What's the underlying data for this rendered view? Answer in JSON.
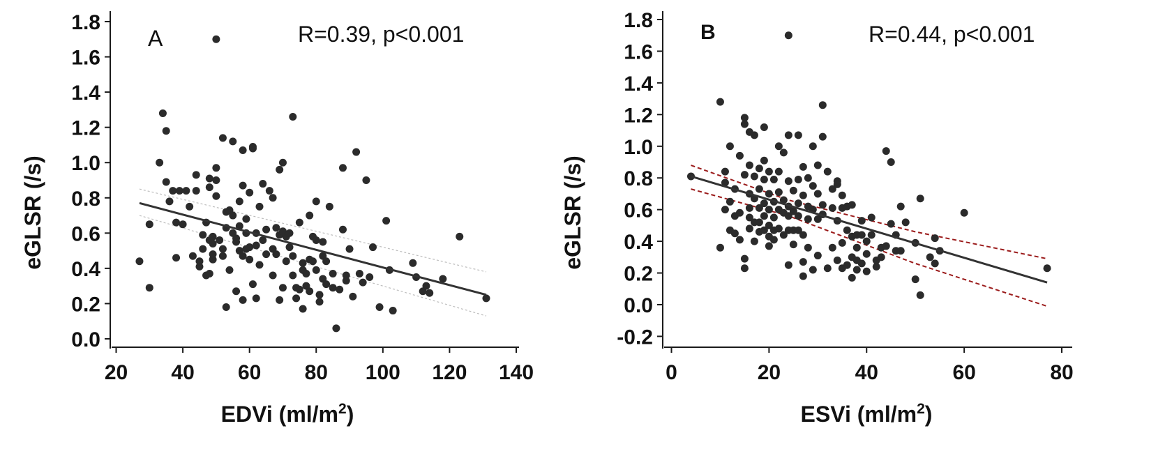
{
  "chart_data": [
    {
      "type": "scatter",
      "panel_label": "A",
      "annotation": "R=0.39, p<0.001",
      "xlabel_main": "EDVi (ml/m",
      "xlabel_sup": "2",
      "xlabel_end": ")",
      "ylabel": "eGLSR (/s)",
      "xlim": [
        20,
        140
      ],
      "ylim": [
        0.0,
        1.8
      ],
      "xticks": [
        "20",
        "40",
        "60",
        "80",
        "100",
        "120",
        "140"
      ],
      "yticks": [
        "0.0",
        "0.2",
        "0.4",
        "0.6",
        "0.8",
        "1.0",
        "1.2",
        "1.4",
        "1.6",
        "1.8"
      ],
      "regression": {
        "x": [
          27,
          131
        ],
        "y": [
          0.77,
          0.25
        ]
      },
      "ci_upper": {
        "x": [
          27,
          131
        ],
        "y": [
          0.85,
          0.38
        ]
      },
      "ci_lower": {
        "x": [
          27,
          131
        ],
        "y": [
          0.7,
          0.13
        ]
      },
      "points": [
        [
          27,
          0.44
        ],
        [
          30,
          0.65
        ],
        [
          30,
          0.29
        ],
        [
          33,
          1.0
        ],
        [
          34,
          1.28
        ],
        [
          35,
          1.18
        ],
        [
          35,
          0.89
        ],
        [
          36,
          0.78
        ],
        [
          37,
          0.84
        ],
        [
          38,
          0.46
        ],
        [
          38,
          0.66
        ],
        [
          39,
          0.84
        ],
        [
          40,
          0.65
        ],
        [
          41,
          0.84
        ],
        [
          42,
          0.75
        ],
        [
          43,
          0.47
        ],
        [
          44,
          0.84
        ],
        [
          44,
          0.93
        ],
        [
          45,
          0.41
        ],
        [
          45,
          0.44
        ],
        [
          46,
          0.59
        ],
        [
          46,
          0.51
        ],
        [
          47,
          0.36
        ],
        [
          47,
          0.66
        ],
        [
          48,
          0.91
        ],
        [
          48,
          0.86
        ],
        [
          48,
          0.56
        ],
        [
          48,
          0.37
        ],
        [
          49,
          0.54
        ],
        [
          49,
          0.45
        ],
        [
          49,
          0.58
        ],
        [
          49,
          0.48
        ],
        [
          50,
          0.97
        ],
        [
          50,
          0.9
        ],
        [
          50,
          1.7
        ],
        [
          50,
          0.81
        ],
        [
          51,
          0.56
        ],
        [
          52,
          1.14
        ],
        [
          52,
          0.51
        ],
        [
          52,
          0.47
        ],
        [
          53,
          0.72
        ],
        [
          53,
          0.63
        ],
        [
          53,
          0.18
        ],
        [
          54,
          0.73
        ],
        [
          54,
          0.39
        ],
        [
          55,
          1.12
        ],
        [
          55,
          0.7
        ],
        [
          55,
          0.6
        ],
        [
          56,
          0.55
        ],
        [
          56,
          0.57
        ],
        [
          56,
          0.27
        ],
        [
          57,
          0.64
        ],
        [
          57,
          0.78
        ],
        [
          57,
          0.5
        ],
        [
          58,
          1.07
        ],
        [
          58,
          0.87
        ],
        [
          58,
          0.47
        ],
        [
          58,
          0.22
        ],
        [
          59,
          0.68
        ],
        [
          59,
          0.6
        ],
        [
          59,
          0.51
        ],
        [
          60,
          0.83
        ],
        [
          60,
          0.52
        ],
        [
          60,
          0.45
        ],
        [
          61,
          1.08
        ],
        [
          61,
          1.09
        ],
        [
          61,
          0.31
        ],
        [
          62,
          0.6
        ],
        [
          62,
          0.53
        ],
        [
          62,
          0.23
        ],
        [
          63,
          0.75
        ],
        [
          63,
          0.42
        ],
        [
          64,
          0.88
        ],
        [
          64,
          0.56
        ],
        [
          65,
          0.62
        ],
        [
          65,
          0.48
        ],
        [
          66,
          0.84
        ],
        [
          67,
          0.8
        ],
        [
          67,
          0.51
        ],
        [
          67,
          0.36
        ],
        [
          68,
          0.63
        ],
        [
          68,
          0.48
        ],
        [
          69,
          0.96
        ],
        [
          69,
          0.59
        ],
        [
          69,
          0.22
        ],
        [
          70,
          1.0
        ],
        [
          70,
          0.61
        ],
        [
          70,
          0.29
        ],
        [
          71,
          0.58
        ],
        [
          71,
          0.44
        ],
        [
          72,
          0.6
        ],
        [
          72,
          0.52
        ],
        [
          73,
          1.26
        ],
        [
          73,
          0.47
        ],
        [
          73,
          0.36
        ],
        [
          74,
          0.29
        ],
        [
          74,
          0.23
        ],
        [
          75,
          0.66
        ],
        [
          75,
          0.28
        ],
        [
          76,
          0.43
        ],
        [
          76,
          0.39
        ],
        [
          76,
          0.17
        ],
        [
          77,
          0.37
        ],
        [
          77,
          0.3
        ],
        [
          78,
          0.7
        ],
        [
          78,
          0.45
        ],
        [
          78,
          0.27
        ],
        [
          79,
          0.58
        ],
        [
          79,
          0.44
        ],
        [
          80,
          0.78
        ],
        [
          80,
          0.56
        ],
        [
          80,
          0.39
        ],
        [
          81,
          0.25
        ],
        [
          81,
          0.21
        ],
        [
          82,
          0.55
        ],
        [
          82,
          0.34
        ],
        [
          82,
          0.47
        ],
        [
          83,
          0.44
        ],
        [
          83,
          0.31
        ],
        [
          84,
          0.75
        ],
        [
          85,
          0.29
        ],
        [
          85,
          0.37
        ],
        [
          86,
          0.06
        ],
        [
          87,
          0.28
        ],
        [
          88,
          0.97
        ],
        [
          88,
          0.62
        ],
        [
          89,
          0.33
        ],
        [
          89,
          0.36
        ],
        [
          90,
          0.51
        ],
        [
          91,
          0.24
        ],
        [
          92,
          1.06
        ],
        [
          93,
          0.37
        ],
        [
          94,
          0.32
        ],
        [
          95,
          0.9
        ],
        [
          96,
          0.35
        ],
        [
          97,
          0.52
        ],
        [
          99,
          0.18
        ],
        [
          101,
          0.67
        ],
        [
          102,
          0.39
        ],
        [
          103,
          0.16
        ],
        [
          109,
          0.43
        ],
        [
          110,
          0.35
        ],
        [
          112,
          0.27
        ],
        [
          113,
          0.3
        ],
        [
          114,
          0.26
        ],
        [
          118,
          0.34
        ],
        [
          123,
          0.58
        ],
        [
          131,
          0.23
        ]
      ]
    },
    {
      "type": "scatter",
      "panel_label": "B",
      "annotation": "R=0.44, p<0.001",
      "xlabel_main": "ESVi (ml/m",
      "xlabel_sup": "2",
      "xlabel_end": ")",
      "ylabel": "eGLSR (/s)",
      "xlim": [
        0,
        80
      ],
      "ylim": [
        -0.2,
        1.8
      ],
      "xticks": [
        "0",
        "20",
        "40",
        "60",
        "80"
      ],
      "yticks": [
        "-0.2",
        "0.0",
        "0.2",
        "0.4",
        "0.6",
        "0.8",
        "1.0",
        "1.2",
        "1.4",
        "1.6",
        "1.8"
      ],
      "regression": {
        "x": [
          4,
          77
        ],
        "y": [
          0.81,
          0.14
        ]
      },
      "ci_upper": {
        "x": [
          4,
          24,
          50,
          77
        ],
        "y": [
          0.88,
          0.66,
          0.46,
          0.29
        ]
      },
      "ci_lower": {
        "x": [
          4,
          24,
          50,
          77
        ],
        "y": [
          0.73,
          0.56,
          0.26,
          -0.01
        ]
      },
      "points": [
        [
          4,
          0.81
        ],
        [
          10,
          1.28
        ],
        [
          10,
          0.36
        ],
        [
          11,
          0.84
        ],
        [
          11,
          0.77
        ],
        [
          11,
          0.6
        ],
        [
          12,
          1.0
        ],
        [
          12,
          0.65
        ],
        [
          12,
          0.47
        ],
        [
          13,
          0.73
        ],
        [
          13,
          0.56
        ],
        [
          13,
          0.45
        ],
        [
          14,
          0.94
        ],
        [
          14,
          0.58
        ],
        [
          14,
          0.41
        ],
        [
          15,
          1.18
        ],
        [
          15,
          1.14
        ],
        [
          15,
          0.82
        ],
        [
          15,
          0.29
        ],
        [
          15,
          0.23
        ],
        [
          16,
          1.09
        ],
        [
          16,
          0.88
        ],
        [
          16,
          0.7
        ],
        [
          16,
          0.61
        ],
        [
          16,
          0.55
        ],
        [
          16,
          0.48
        ],
        [
          17,
          1.07
        ],
        [
          17,
          0.81
        ],
        [
          17,
          0.67
        ],
        [
          17,
          0.52
        ],
        [
          17,
          0.4
        ],
        [
          18,
          0.86
        ],
        [
          18,
          0.73
        ],
        [
          18,
          0.61
        ],
        [
          18,
          0.52
        ],
        [
          18,
          0.46
        ],
        [
          19,
          1.12
        ],
        [
          19,
          0.91
        ],
        [
          19,
          0.79
        ],
        [
          19,
          0.64
        ],
        [
          19,
          0.56
        ],
        [
          19,
          0.47
        ],
        [
          20,
          0.84
        ],
        [
          20,
          0.7
        ],
        [
          20,
          0.6
        ],
        [
          20,
          0.5
        ],
        [
          20,
          0.43
        ],
        [
          20,
          0.37
        ],
        [
          21,
          0.79
        ],
        [
          21,
          0.65
        ],
        [
          21,
          0.55
        ],
        [
          21,
          0.47
        ],
        [
          21,
          0.41
        ],
        [
          22,
          1.0
        ],
        [
          22,
          0.84
        ],
        [
          22,
          0.71
        ],
        [
          22,
          0.6
        ],
        [
          22,
          0.48
        ],
        [
          23,
          0.96
        ],
        [
          23,
          0.66
        ],
        [
          23,
          0.58
        ],
        [
          23,
          0.44
        ],
        [
          24,
          1.07
        ],
        [
          24,
          0.78
        ],
        [
          24,
          0.62
        ],
        [
          24,
          0.56
        ],
        [
          24,
          0.47
        ],
        [
          24,
          0.25
        ],
        [
          24,
          1.7
        ],
        [
          25,
          0.72
        ],
        [
          25,
          0.59
        ],
        [
          25,
          0.47
        ],
        [
          25,
          0.38
        ],
        [
          26,
          1.07
        ],
        [
          26,
          0.79
        ],
        [
          26,
          0.64
        ],
        [
          26,
          0.56
        ],
        [
          26,
          0.47
        ],
        [
          27,
          0.87
        ],
        [
          27,
          0.69
        ],
        [
          27,
          0.44
        ],
        [
          27,
          0.27
        ],
        [
          27,
          0.18
        ],
        [
          28,
          0.8
        ],
        [
          28,
          0.62
        ],
        [
          28,
          0.54
        ],
        [
          28,
          0.36
        ],
        [
          29,
          1.0
        ],
        [
          29,
          0.75
        ],
        [
          29,
          0.6
        ],
        [
          29,
          0.22
        ],
        [
          30,
          0.88
        ],
        [
          30,
          0.7
        ],
        [
          30,
          0.54
        ],
        [
          30,
          0.31
        ],
        [
          31,
          1.26
        ],
        [
          31,
          1.06
        ],
        [
          31,
          0.63
        ],
        [
          31,
          0.57
        ],
        [
          32,
          0.84
        ],
        [
          32,
          0.23
        ],
        [
          33,
          0.73
        ],
        [
          33,
          0.61
        ],
        [
          33,
          0.36
        ],
        [
          34,
          0.78
        ],
        [
          34,
          0.76
        ],
        [
          34,
          0.53
        ],
        [
          34,
          0.28
        ],
        [
          35,
          0.69
        ],
        [
          35,
          0.61
        ],
        [
          35,
          0.39
        ],
        [
          35,
          0.23
        ],
        [
          36,
          0.62
        ],
        [
          36,
          0.47
        ],
        [
          36,
          0.25
        ],
        [
          37,
          0.63
        ],
        [
          37,
          0.43
        ],
        [
          37,
          0.3
        ],
        [
          37,
          0.17
        ],
        [
          38,
          0.44
        ],
        [
          38,
          0.36
        ],
        [
          38,
          0.28
        ],
        [
          38,
          0.22
        ],
        [
          39,
          0.53
        ],
        [
          39,
          0.44
        ],
        [
          39,
          0.26
        ],
        [
          40,
          0.4
        ],
        [
          40,
          0.32
        ],
        [
          40,
          0.21
        ],
        [
          41,
          0.55
        ],
        [
          41,
          0.44
        ],
        [
          42,
          0.28
        ],
        [
          42,
          0.24
        ],
        [
          43,
          0.36
        ],
        [
          43,
          0.3
        ],
        [
          44,
          0.97
        ],
        [
          44,
          0.37
        ],
        [
          45,
          0.9
        ],
        [
          45,
          0.51
        ],
        [
          46,
          0.34
        ],
        [
          46,
          0.44
        ],
        [
          47,
          0.34
        ],
        [
          47,
          0.62
        ],
        [
          48,
          0.52
        ],
        [
          50,
          0.16
        ],
        [
          50,
          0.39
        ],
        [
          51,
          0.67
        ],
        [
          51,
          0.06
        ],
        [
          53,
          0.3
        ],
        [
          54,
          0.42
        ],
        [
          54,
          0.26
        ],
        [
          55,
          0.34
        ],
        [
          60,
          0.58
        ],
        [
          77,
          0.23
        ]
      ]
    }
  ]
}
